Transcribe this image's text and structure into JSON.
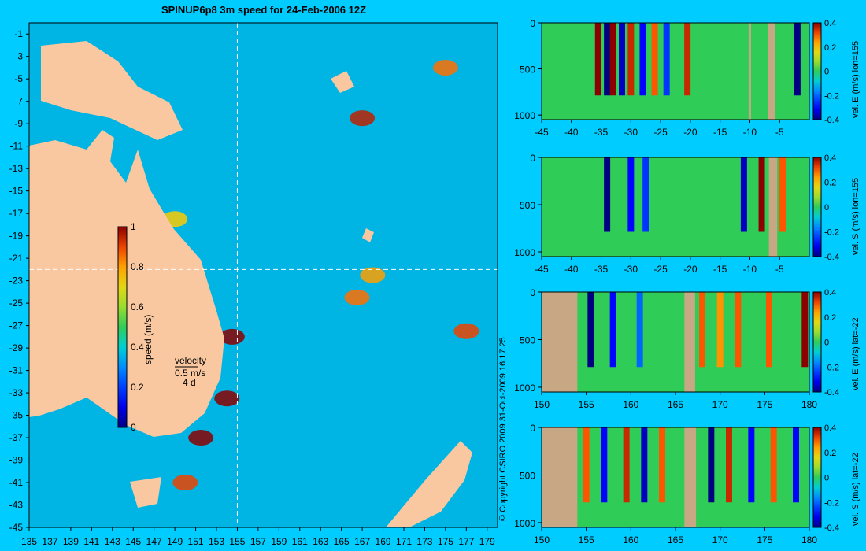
{
  "title": "SPINUP6p8 3m speed for 24-Feb-2006 12Z",
  "copyright": "© Copyright CSIRO 2009  31-Oct-2009 16:17:25",
  "colors": {
    "background": "#00ccff",
    "land": "#f9c8a0",
    "bathy_mask": "#c8a884",
    "section_line": "#ffffff"
  },
  "chart_data": [
    {
      "type": "heatmap",
      "name": "map",
      "title": "SPINUP6p8 3m speed for 24-Feb-2006 12Z",
      "xlabel": "",
      "ylabel": "",
      "xlim": [
        135,
        180
      ],
      "ylim": [
        -45,
        0
      ],
      "x_ticks": [
        "135",
        "137",
        "139",
        "141",
        "143",
        "145",
        "147",
        "149",
        "151",
        "153",
        "155",
        "157",
        "159",
        "161",
        "163",
        "165",
        "167",
        "169",
        "171",
        "173",
        "175",
        "177",
        "179"
      ],
      "y_ticks": [
        "-1",
        "-3",
        "-5",
        "-7",
        "-9",
        "-11",
        "-13",
        "-15",
        "-17",
        "-19",
        "-21",
        "-23",
        "-25",
        "-27",
        "-29",
        "-31",
        "-33",
        "-35",
        "-37",
        "-39",
        "-41",
        "-43",
        "-45"
      ],
      "section_lines": {
        "lon": 155,
        "lat": -22
      },
      "colorbar": {
        "label": "speed (m/s)",
        "ticks": [
          "1",
          "0.8",
          "0.6",
          "0.4",
          "0.2",
          "0"
        ],
        "range": [
          0,
          1
        ]
      },
      "velocity_key": {
        "label": "velocity",
        "speed": "0.5 m/s",
        "days": "4 d"
      },
      "hotspots": [
        {
          "lon": 154.5,
          "lat": -28,
          "speed": 1.0
        },
        {
          "lon": 154,
          "lat": -33.5,
          "speed": 1.0
        },
        {
          "lon": 151.5,
          "lat": -37,
          "speed": 1.0
        },
        {
          "lon": 150,
          "lat": -41,
          "speed": 0.9
        },
        {
          "lon": 167,
          "lat": -8.5,
          "speed": 0.95
        },
        {
          "lon": 175,
          "lat": -4,
          "speed": 0.85
        },
        {
          "lon": 177,
          "lat": -27.5,
          "speed": 0.9
        },
        {
          "lon": 166.5,
          "lat": -24.5,
          "speed": 0.85
        },
        {
          "lon": 168,
          "lat": -22.5,
          "speed": 0.8
        },
        {
          "lon": 149,
          "lat": -17.5,
          "speed": 0.75
        }
      ]
    },
    {
      "type": "heatmap",
      "name": "section-1",
      "ylabel": "vel. E (m/s) lon=155",
      "x_ticks": [
        "-45",
        "-40",
        "-35",
        "-30",
        "-25",
        "-20",
        "-15",
        "-10",
        "-5"
      ],
      "xlim": [
        -45,
        0
      ],
      "y_ticks": [
        "0",
        "500",
        "1000"
      ],
      "ylim": [
        0,
        1050
      ],
      "colorbar_ticks": [
        "0.4",
        "0.2",
        "0",
        "-0.2",
        "-0.4"
      ],
      "colorbar_range": [
        -0.4,
        0.4
      ],
      "features": [
        {
          "x": -35.5,
          "v": 0.4
        },
        {
          "x": -34,
          "v": -0.4
        },
        {
          "x": -33,
          "v": 0.4
        },
        {
          "x": -31.5,
          "v": -0.35
        },
        {
          "x": -30,
          "v": 0.35
        },
        {
          "x": -28,
          "v": -0.3
        },
        {
          "x": -26,
          "v": 0.3
        },
        {
          "x": -24,
          "v": -0.25
        },
        {
          "x": -20.5,
          "v": 0.35
        },
        {
          "x": -2,
          "v": -0.4
        }
      ],
      "masks": [
        {
          "x0": -7,
          "x1": -5.8
        },
        {
          "x0": -10.2,
          "x1": -9.8
        }
      ]
    },
    {
      "type": "heatmap",
      "name": "section-2",
      "ylabel": "vel. S (m/s) lon=155",
      "x_ticks": [
        "-45",
        "-40",
        "-35",
        "-30",
        "-25",
        "-20",
        "-15",
        "-10",
        "-5"
      ],
      "xlim": [
        -45,
        0
      ],
      "y_ticks": [
        "0",
        "500",
        "1000"
      ],
      "ylim": [
        0,
        1050
      ],
      "colorbar_ticks": [
        "0.4",
        "0.2",
        "0",
        "-0.2",
        "-0.4"
      ],
      "colorbar_range": [
        -0.4,
        0.4
      ],
      "features": [
        {
          "x": -34,
          "v": -0.4
        },
        {
          "x": -30,
          "v": -0.3
        },
        {
          "x": -27.5,
          "v": -0.25
        },
        {
          "x": -11,
          "v": -0.35
        },
        {
          "x": -8,
          "v": 0.4
        },
        {
          "x": -4.5,
          "v": 0.3
        }
      ],
      "masks": [
        {
          "x0": -6.8,
          "x1": -5.4
        }
      ]
    },
    {
      "type": "heatmap",
      "name": "section-3",
      "ylabel": "vel. E (m/s) lat=-22",
      "x_ticks": [
        "150",
        "155",
        "160",
        "165",
        "170",
        "175",
        "180"
      ],
      "xlim": [
        150,
        180
      ],
      "y_ticks": [
        "0",
        "500",
        "1000"
      ],
      "ylim": [
        0,
        1050
      ],
      "colorbar_ticks": [
        "0.4",
        "0.2",
        "0",
        "-0.2",
        "-0.4"
      ],
      "colorbar_range": [
        -0.4,
        0.4
      ],
      "features": [
        {
          "x": 155.5,
          "v": -0.4
        },
        {
          "x": 158,
          "v": -0.3
        },
        {
          "x": 161,
          "v": -0.2
        },
        {
          "x": 168,
          "v": 0.3
        },
        {
          "x": 170,
          "v": 0.25
        },
        {
          "x": 172,
          "v": 0.3
        },
        {
          "x": 175.5,
          "v": 0.3
        },
        {
          "x": 179.5,
          "v": 0.4
        }
      ],
      "masks": [
        {
          "x0": 150,
          "x1": 154
        },
        {
          "x0": 166,
          "x1": 167.2
        }
      ]
    },
    {
      "type": "heatmap",
      "name": "section-4",
      "ylabel": "vel. S (m/s) lat=-22",
      "x_ticks": [
        "150",
        "155",
        "160",
        "165",
        "170",
        "175",
        "180"
      ],
      "xlim": [
        150,
        180
      ],
      "y_ticks": [
        "0",
        "500",
        "1000"
      ],
      "ylim": [
        0,
        1050
      ],
      "colorbar_ticks": [
        "0.4",
        "0.2",
        "0",
        "-0.2",
        "-0.4"
      ],
      "colorbar_range": [
        -0.4,
        0.4
      ],
      "features": [
        {
          "x": 155,
          "v": 0.3
        },
        {
          "x": 157,
          "v": -0.3
        },
        {
          "x": 159.5,
          "v": 0.35
        },
        {
          "x": 161.5,
          "v": -0.35
        },
        {
          "x": 163.5,
          "v": 0.3
        },
        {
          "x": 169,
          "v": -0.4
        },
        {
          "x": 171,
          "v": 0.35
        },
        {
          "x": 173.5,
          "v": -0.3
        },
        {
          "x": 176,
          "v": 0.3
        },
        {
          "x": 178.5,
          "v": -0.3
        }
      ],
      "masks": [
        {
          "x0": 150,
          "x1": 154
        },
        {
          "x0": 166,
          "x1": 167.3
        }
      ]
    }
  ]
}
